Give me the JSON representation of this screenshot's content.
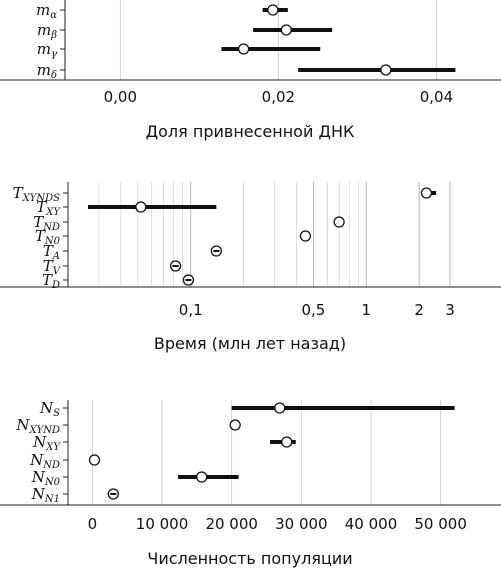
{
  "chart_data": [
    {
      "type": "scatter",
      "title": "",
      "xlabel": "Доля привнесенной ДНК",
      "xlim": [
        -0.007,
        0.0445
      ],
      "xscale": "linear",
      "grid": true,
      "ticks": [
        {
          "value": 0.0,
          "label": "0,00"
        },
        {
          "value": 0.02,
          "label": "0,02"
        },
        {
          "value": 0.04,
          "label": "0,04"
        }
      ],
      "rows": [
        {
          "label": "m",
          "sub": "α",
          "point": 0.0193,
          "ci": [
            0.018,
            0.0212
          ]
        },
        {
          "label": "m",
          "sub": "β",
          "point": 0.021,
          "ci": [
            0.0168,
            0.0268
          ]
        },
        {
          "label": "m",
          "sub": "γ",
          "point": 0.0156,
          "ci": [
            0.0128,
            0.0253
          ]
        },
        {
          "label": "m",
          "sub": "δ",
          "point": 0.0336,
          "ci": [
            0.0225,
            0.0424
          ]
        }
      ]
    },
    {
      "type": "scatter",
      "title": "",
      "xlabel": "Время (млн лет назад)",
      "xlim": [
        0.02,
        4
      ],
      "xscale": "log",
      "grid": true,
      "ticks": [
        {
          "value": 0.1,
          "label": "0,1"
        },
        {
          "value": 0.5,
          "label": "0,5"
        },
        {
          "value": 1,
          "label": "1"
        },
        {
          "value": 2,
          "label": "2"
        },
        {
          "value": 3,
          "label": "3"
        }
      ],
      "rows": [
        {
          "label": "T",
          "sub": "XYNDS",
          "point": 2.2,
          "ci": [
            2.05,
            2.5
          ]
        },
        {
          "label": "T",
          "sub": "XY",
          "point": 0.052,
          "ci": [
            0.026,
            0.14
          ]
        },
        {
          "label": "T",
          "sub": "ND",
          "point": 0.7,
          "ci": [
            0.69,
            0.71
          ]
        },
        {
          "label": "T",
          "sub": "N0",
          "point": 0.45,
          "ci": [
            0.44,
            0.46
          ]
        },
        {
          "label": "T",
          "sub": "A",
          "point": 0.14,
          "ci": [
            0.14,
            0.14
          ]
        },
        {
          "label": "T",
          "sub": "V",
          "point": 0.082,
          "ci": [
            0.082,
            0.082
          ]
        },
        {
          "label": "T",
          "sub": "D",
          "point": 0.097,
          "ci": [
            0.097,
            0.097
          ]
        }
      ]
    },
    {
      "type": "scatter",
      "title": "",
      "xlabel": "Численность популяции",
      "xlim": [
        -3500,
        54500
      ],
      "xscale": "linear",
      "grid": true,
      "ticks": [
        {
          "value": 0,
          "label": "0"
        },
        {
          "value": 10000,
          "label": "10 000"
        },
        {
          "value": 20000,
          "label": "20 000"
        },
        {
          "value": 30000,
          "label": "30 000"
        },
        {
          "value": 40000,
          "label": "40 000"
        },
        {
          "value": 50000,
          "label": "50 000"
        }
      ],
      "rows": [
        {
          "label": "N",
          "sub": "S",
          "point": 26900,
          "ci": [
            20000,
            52000
          ]
        },
        {
          "label": "N",
          "sub": "XYND",
          "point": 20500,
          "ci": [
            20300,
            20800
          ]
        },
        {
          "label": "N",
          "sub": "XY",
          "point": 27900,
          "ci": [
            25500,
            29200
          ]
        },
        {
          "label": "N",
          "sub": "ND",
          "point": 300,
          "ci": [
            0,
            600
          ]
        },
        {
          "label": "N",
          "sub": "N0",
          "point": 15700,
          "ci": [
            12300,
            21000
          ]
        },
        {
          "label": "N",
          "sub": "N1",
          "point": 3000,
          "ci": [
            3000,
            3000
          ]
        }
      ]
    }
  ]
}
